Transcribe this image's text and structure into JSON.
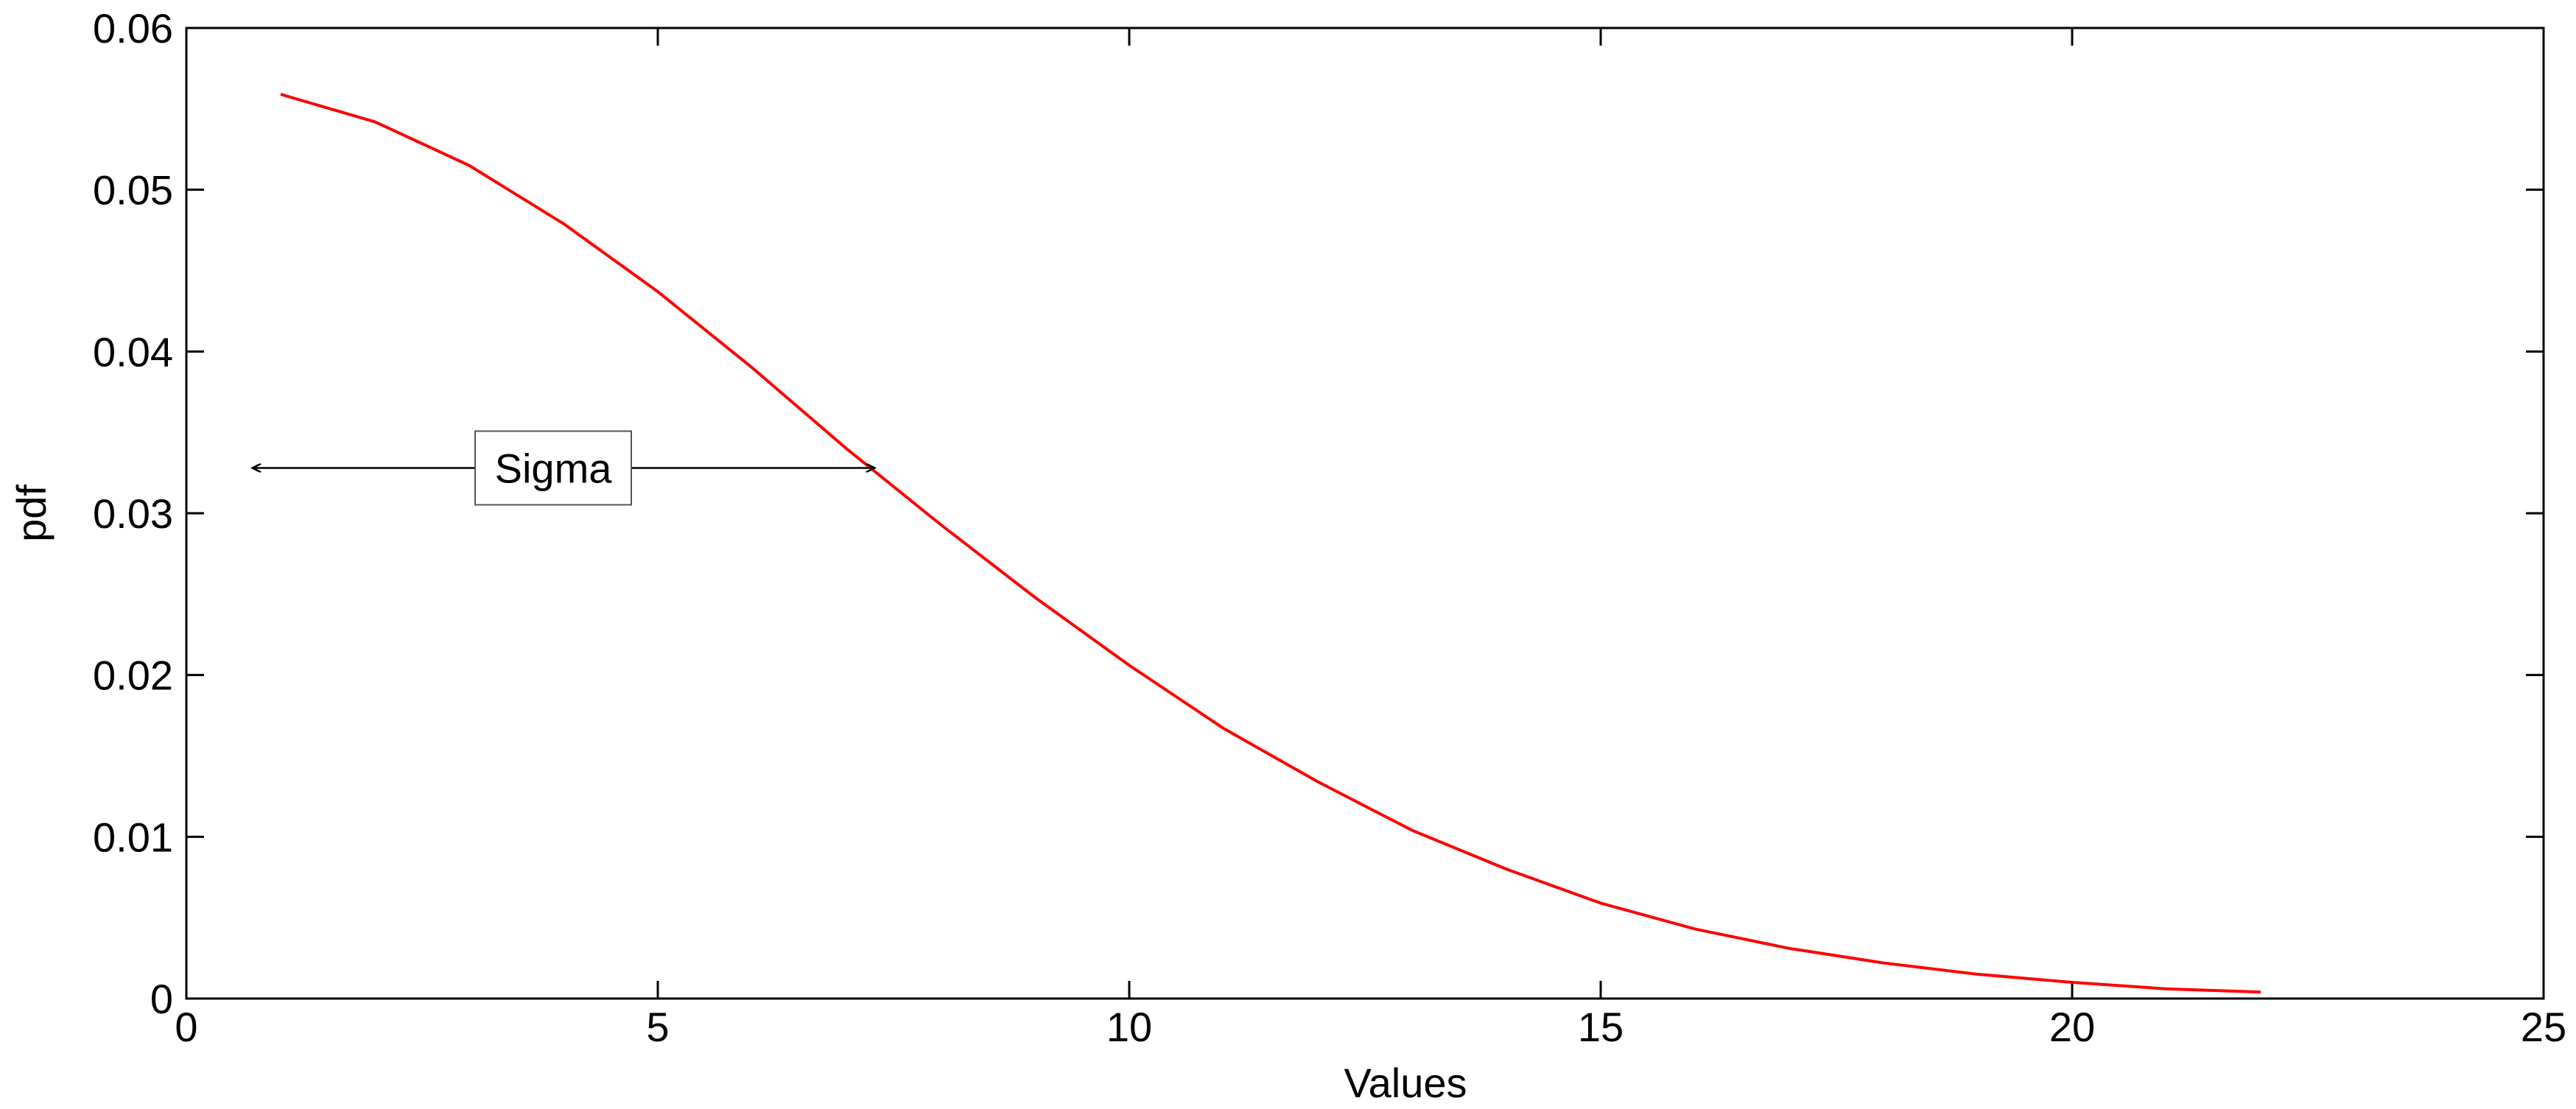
{
  "chart_data": {
    "type": "line",
    "title": "",
    "xlabel": "Values",
    "ylabel": "pdf",
    "xlim": [
      0,
      25
    ],
    "ylim": [
      0,
      0.06
    ],
    "xticks": [
      0,
      5,
      10,
      15,
      20,
      25
    ],
    "xtick_labels": [
      "0",
      "5",
      "10",
      "15",
      "20",
      "25"
    ],
    "yticks": [
      0,
      0.01,
      0.02,
      0.03,
      0.04,
      0.05,
      0.06
    ],
    "ytick_labels": [
      "0",
      "0.01",
      "0.02",
      "0.03",
      "0.04",
      "0.05",
      "0.06"
    ],
    "grid": false,
    "series": [
      {
        "color": "#ff0000",
        "x": [
          1,
          2,
          3,
          4,
          5,
          6,
          7,
          8,
          9,
          10,
          11,
          12,
          13,
          14,
          15,
          16,
          17,
          18,
          19,
          20,
          21,
          22
        ],
        "y": [
          0.0559,
          0.0542,
          0.0515,
          0.0479,
          0.0437,
          0.039,
          0.034,
          0.0293,
          0.0248,
          0.0206,
          0.0167,
          0.0134,
          0.0104,
          0.008,
          0.0059,
          0.0043,
          0.0031,
          0.0022,
          0.0015,
          0.001,
          0.0006,
          0.0004
        ]
      }
    ],
    "annotations": [
      {
        "text": "Sigma",
        "arrow_from_x": 0.7,
        "arrow_to_x": 7.3,
        "arrow_y": 0.0328,
        "color": "#000000"
      }
    ]
  }
}
